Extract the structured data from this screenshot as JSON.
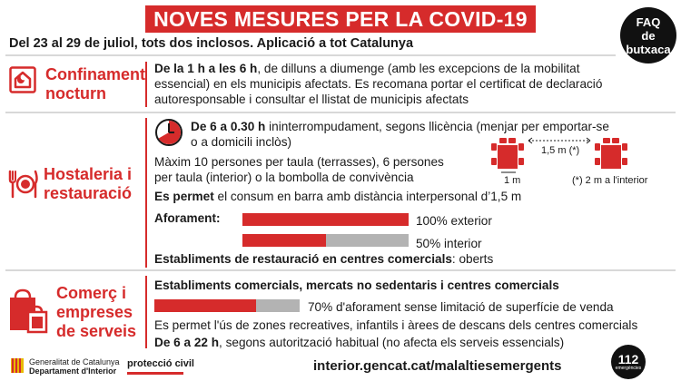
{
  "header": {
    "title": "NOVES MESURES PER LA COVID-19",
    "subtitle": "Del 23 al 29 de juliol, tots dos inclosos. Aplicació a tot Catalunya",
    "faq_line1": "FAQ",
    "faq_line2": "de",
    "faq_line3": "butxaca"
  },
  "confinament": {
    "title_line1": "Confinament",
    "title_line2": "nocturn",
    "line1_bold": "De la 1 h a les 6 h",
    "line1_rest": ", de dilluns a diumenge (amb les excepcions de la mobilitat",
    "line2": "essencial) en els municipis afectats. Es recomana portar el certificat de declaració",
    "line3": "autoresponsable i consultar el llistat de municipis afectats"
  },
  "hostaleria": {
    "title_line1": "Hostaleria i",
    "title_line2": "restauració",
    "hours_bold": "De 6 a 0.30 h",
    "hours_rest": " ininterrompudament, segons llicència (menjar per emportar-se",
    "hours_line2": "o a domicili inclòs)",
    "capacity_line1": "Màxim 10 persones per taula (terrasses), 6 persones",
    "capacity_line2": "per taula (interior) o la bombolla de convivència",
    "bar_bold": "Es permet",
    "bar_rest": " el consum en barra amb distància interpersonal d’1,5 m",
    "aforament_label": "Aforament:",
    "aforament_exterior_label": "100% exterior",
    "aforament_exterior": 100,
    "aforament_interior_label": "50% interior",
    "aforament_interior": 50,
    "centres_bold": "Establiments de restauració en centres comercials",
    "centres_rest": ": oberts",
    "diagram_dist_top": "1,5 m (*)",
    "diagram_dist_left": "1 m",
    "diagram_note": "(*) 2 m a l'interior"
  },
  "comerc": {
    "title_line1": "Comerç i",
    "title_line2": "empreses",
    "title_line3": "de serveis",
    "line1": "Establiments comercials, mercats no sedentaris i centres comercials",
    "aforament_label": "70% d'aforament sense limitació de superfície de venda",
    "aforament": 70,
    "line3": "Es permet l'ús de zones recreatives, infantils i àrees de descans dels centres comercials",
    "line4_bold": "De 6 a 22 h",
    "line4_rest": ", segons autorització habitual (no afecta els serveis essencials)"
  },
  "footer": {
    "gencat_line1": "Generalitat de Catalunya",
    "gencat_line2": "Departament d'Interior",
    "proteccio": "protecció civil",
    "url": "interior.gencat.cat/malaltiesemergents",
    "emergency_number": "112",
    "emergency_label": "emergències"
  },
  "colors": {
    "accent": "#d62b2b",
    "gray_bar": "#b3b3b3",
    "dark": "#1a1a1a"
  }
}
